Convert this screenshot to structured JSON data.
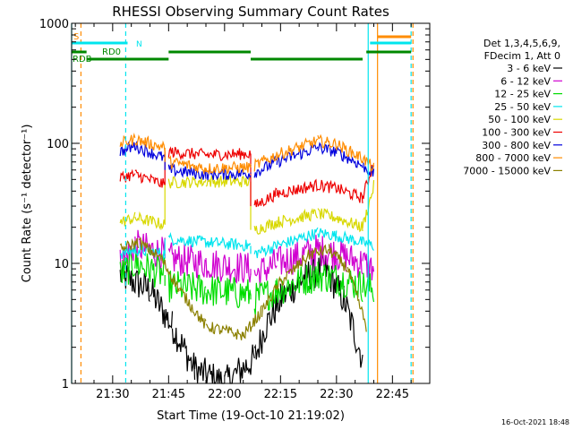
{
  "chart_data": {
    "type": "line",
    "title": "RHESSI Observing Summary Count Rates",
    "xlabel": "Start Time (19-Oct-10 21:19:02)",
    "ylabel": "Count Rate (s⁻¹ detector⁻¹)",
    "y_scale": "log",
    "ylim": [
      1,
      1000
    ],
    "xlim": [
      "21:19",
      "22:55"
    ],
    "x_ticks": [
      "21:30",
      "21:45",
      "22:00",
      "22:15",
      "22:30",
      "22:45"
    ],
    "y_ticks": [
      "1",
      "10",
      "100",
      "1000"
    ],
    "legend_position": "right",
    "legend_header": [
      "Det 1,3,4,5,6,9,",
      "FDecim 1, Att 0"
    ],
    "timestamp": "16-Oct-2021 18:48",
    "flag_labels": {
      "S": "S",
      "RD0": "RD0",
      "RDB": "RDB",
      "N": "N"
    },
    "data_gaps": [
      [
        "21:19",
        "21:31"
      ],
      [
        "22:38",
        "22:55"
      ]
    ],
    "series": [
      {
        "name": "3 - 6 keV",
        "color": "#000000",
        "times": [
          "21:32",
          "21:40",
          "21:46",
          "21:52",
          "22:00",
          "22:08",
          "22:11",
          "22:15",
          "22:22",
          "22:27",
          "22:32",
          "22:37"
        ],
        "values": [
          8,
          6,
          3,
          1.3,
          1,
          1.6,
          3,
          5,
          8,
          9,
          5,
          1.6
        ]
      },
      {
        "name": "6 - 12 keV",
        "color": "#d000d0",
        "times": [
          "21:32",
          "21:36",
          "21:44",
          "21:45",
          "21:55",
          "22:07",
          "22:08",
          "22:14",
          "22:25",
          "22:30",
          "22:37",
          "22:40"
        ],
        "values": [
          10,
          14,
          12,
          11,
          10,
          9,
          8,
          10,
          13,
          12,
          10,
          9
        ]
      },
      {
        "name": "12 - 25 keV",
        "color": "#00dd00",
        "times": [
          "21:32",
          "21:36",
          "21:44",
          "21:45",
          "21:55",
          "22:07",
          "22:08",
          "22:14",
          "22:25",
          "22:30",
          "22:37",
          "22:40"
        ],
        "values": [
          8,
          10,
          8,
          6.5,
          6,
          5.5,
          5,
          6,
          8,
          7.5,
          6.5,
          6
        ]
      },
      {
        "name": "25 - 50 keV",
        "color": "#00e5ee",
        "times": [
          "21:32",
          "21:36",
          "21:44",
          "21:45",
          "21:55",
          "22:07",
          "22:08",
          "22:14",
          "22:25",
          "22:30",
          "22:37",
          "22:40"
        ],
        "values": [
          12,
          13,
          12,
          16,
          15,
          14,
          12,
          14,
          18,
          17,
          15,
          14
        ]
      },
      {
        "name": "50 - 100 keV",
        "color": "#d8d800",
        "times": [
          "21:32",
          "21:36",
          "21:44",
          "21:45",
          "21:55",
          "22:07",
          "22:08",
          "22:14",
          "22:25",
          "22:30",
          "22:37",
          "22:40"
        ],
        "values": [
          22,
          24,
          21,
          47,
          48,
          48,
          19,
          22,
          26,
          24,
          20,
          44
        ]
      },
      {
        "name": "100 - 300 keV",
        "color": "#ee0000",
        "times": [
          "21:32",
          "21:36",
          "21:44",
          "21:45",
          "21:55",
          "22:07",
          "22:08",
          "22:14",
          "22:25",
          "22:30",
          "22:37",
          "22:40"
        ],
        "values": [
          52,
          55,
          45,
          85,
          80,
          82,
          30,
          38,
          45,
          42,
          35,
          70
        ]
      },
      {
        "name": "300 - 800 keV",
        "color": "#0000dd",
        "times": [
          "21:32",
          "21:36",
          "21:44",
          "21:45",
          "21:55",
          "22:07",
          "22:08",
          "22:14",
          "22:25",
          "22:30",
          "22:37",
          "22:40"
        ],
        "values": [
          85,
          95,
          75,
          60,
          55,
          56,
          57,
          70,
          92,
          85,
          65,
          55
        ]
      },
      {
        "name": "800 - 7000 keV",
        "color": "#ff8c00",
        "times": [
          "21:32",
          "21:36",
          "21:44",
          "21:45",
          "21:55",
          "22:07",
          "22:08",
          "22:14",
          "22:25",
          "22:30",
          "22:37",
          "22:40"
        ],
        "values": [
          100,
          108,
          92,
          70,
          62,
          63,
          65,
          80,
          105,
          98,
          75,
          62
        ]
      },
      {
        "name": "7000 - 15000 keV",
        "color": "#8b8000",
        "times": [
          "21:32",
          "21:37",
          "21:43",
          "21:48",
          "21:55",
          "22:05",
          "22:10",
          "22:15",
          "22:23",
          "22:28",
          "22:33",
          "22:38"
        ],
        "values": [
          13,
          15,
          11,
          6,
          3,
          2.5,
          4,
          7,
          12,
          13,
          9,
          3
        ]
      }
    ],
    "flags": [
      {
        "name": "S",
        "color": "#ff8c00",
        "segments": [
          [
            "22:41",
            "22:50"
          ]
        ]
      },
      {
        "name": "N",
        "color": "#00e5ee",
        "segments": [
          [
            "21:19",
            "21:34"
          ],
          [
            "22:39",
            "22:50"
          ]
        ]
      },
      {
        "name": "RD0",
        "color": "#008800",
        "segments": [
          [
            "21:19",
            "21:23"
          ],
          [
            "21:45",
            "22:07"
          ],
          [
            "22:38",
            "22:50"
          ]
        ]
      },
      {
        "name": "RDB",
        "color": "#008800",
        "segments": [
          [
            "21:23",
            "21:45"
          ],
          [
            "22:07",
            "22:37"
          ]
        ]
      }
    ],
    "vertical_markers": [
      {
        "time": "21:19",
        "color": "#00e5ee",
        "style": "solid"
      },
      {
        "time": "21:21.5",
        "color": "#ff8c00",
        "style": "dashed"
      },
      {
        "time": "21:33.5",
        "color": "#00e5ee",
        "style": "dashed"
      },
      {
        "time": "22:38.5",
        "color": "#00e5ee",
        "style": "solid"
      },
      {
        "time": "22:41",
        "color": "#ff8c00",
        "style": "solid"
      },
      {
        "time": "22:50",
        "color": "#00e5ee",
        "style": "dashed"
      },
      {
        "time": "22:50.5",
        "color": "#ff8c00",
        "style": "dashed"
      }
    ]
  }
}
